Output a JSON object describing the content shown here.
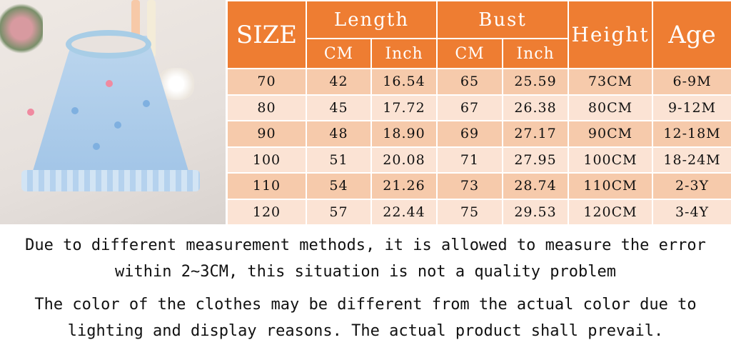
{
  "colors": {
    "header": "#ee7d32",
    "row_odd": "#f6caab",
    "row_even": "#fbe3d4"
  },
  "photo": {
    "description_icon": "blue-tulle-dress-photo"
  },
  "table": {
    "size_label": "SIZE",
    "length_label": "Length",
    "bust_label": "Bust",
    "height_label": "Height",
    "age_label": "Age",
    "cm_label": "CM",
    "inch_label": "Inch",
    "rows": [
      [
        "70",
        "42",
        "16.54",
        "65",
        "25.59",
        "73CM",
        "6-9M"
      ],
      [
        "80",
        "45",
        "17.72",
        "67",
        "26.38",
        "80CM",
        "9-12M"
      ],
      [
        "90",
        "48",
        "18.90",
        "69",
        "27.17",
        "90CM",
        "12-18M"
      ],
      [
        "100",
        "51",
        "20.08",
        "71",
        "27.95",
        "100CM",
        "18-24M"
      ],
      [
        "110",
        "54",
        "21.26",
        "73",
        "28.74",
        "110CM",
        "2-3Y"
      ],
      [
        "120",
        "57",
        "22.44",
        "75",
        "29.53",
        "120CM",
        "3-4Y"
      ]
    ]
  },
  "notes": {
    "line1": "Due to different measurement methods, it is allowed to measure the error",
    "line2": "within 2~3CM, this situation is not a quality problem",
    "line3": "The color of the clothes may be different from the actual color due to",
    "line4": "lighting and display reasons. The actual product shall prevail."
  }
}
